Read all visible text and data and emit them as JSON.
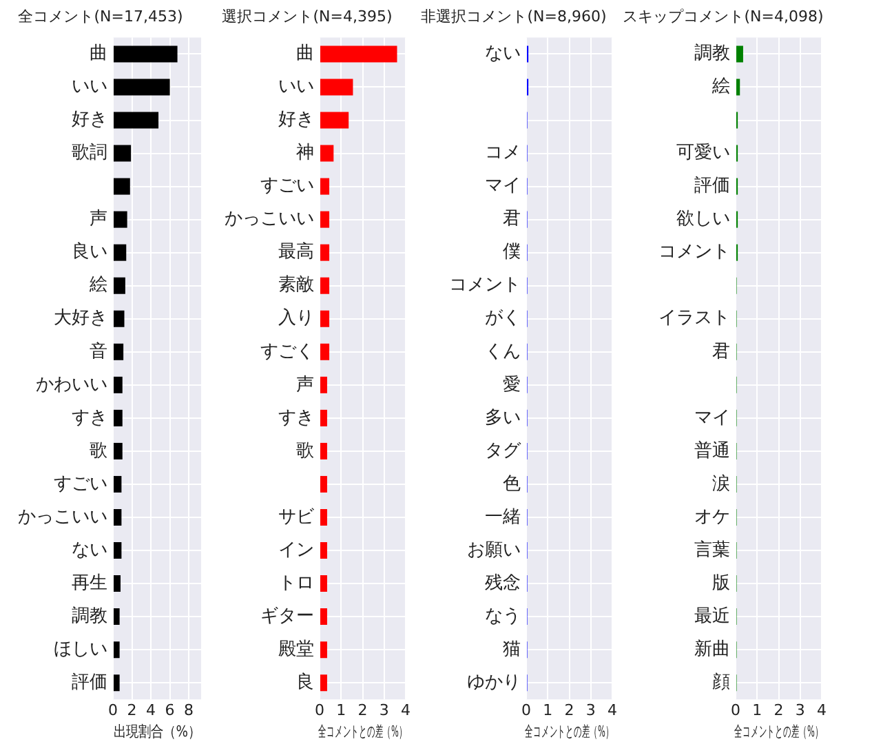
{
  "chart_data": [
    {
      "type": "bar",
      "orientation": "horizontal",
      "title": "全コメント(N=17,453)",
      "xlabel": "出現割合（%）",
      "grid": true,
      "color": "#000000",
      "xlim": [
        0,
        9.3
      ],
      "xticks": [
        0,
        2,
        4,
        6,
        8
      ],
      "categories": [
        "曲",
        "いい",
        "好き",
        "歌詞",
        null,
        "声",
        "良い",
        "絵",
        "大好き",
        "音",
        "かわいい",
        "すき",
        "歌",
        "すごい",
        "かっこいい",
        "ない",
        "再生",
        "調教",
        "ほしい",
        "評価"
      ],
      "values": [
        6.8,
        6.0,
        4.8,
        1.9,
        1.8,
        1.5,
        1.4,
        1.3,
        1.2,
        1.1,
        1.0,
        1.0,
        1.0,
        0.9,
        0.9,
        0.9,
        0.8,
        0.7,
        0.7,
        0.7
      ]
    },
    {
      "type": "bar",
      "orientation": "horizontal",
      "title": "選択コメント(N=4,395)",
      "xlabel": "全コメントとの差（%）",
      "grid": true,
      "color": "#ff0000",
      "xlim": [
        0,
        4
      ],
      "xticks": [
        0,
        1,
        2,
        3,
        4
      ],
      "categories": [
        "曲",
        "いい",
        "好き",
        "神",
        "すごい",
        "かっこいい",
        "最高",
        "素敵",
        "入り",
        "すごく",
        "声",
        "すき",
        "歌",
        null,
        "サビ",
        "イン",
        "トロ",
        "ギター",
        "殿堂",
        "良"
      ],
      "values": [
        3.6,
        1.55,
        1.35,
        0.65,
        0.45,
        0.45,
        0.45,
        0.45,
        0.45,
        0.45,
        0.35,
        0.35,
        0.35,
        0.35,
        0.35,
        0.35,
        0.35,
        0.35,
        0.35,
        0.35
      ]
    },
    {
      "type": "bar",
      "orientation": "horizontal",
      "title": "非選択コメント(N=8,960)",
      "xlabel": "全コメントとの差（%）",
      "grid": true,
      "color": "#0000ff",
      "xlim": [
        0,
        4
      ],
      "xticks": [
        0,
        1,
        2,
        3,
        4
      ],
      "categories": [
        "ない",
        null,
        null,
        "コメ",
        "マイ",
        "君",
        "僕",
        "コメント",
        "がく",
        "くん",
        "愛",
        "多い",
        "タグ",
        "色",
        "一緒",
        "お願い",
        "残念",
        "なう",
        "猫",
        "ゆかり"
      ],
      "values": [
        0.1,
        0.1,
        0.05,
        0.05,
        0.05,
        0.05,
        0.05,
        0.05,
        0.05,
        0.05,
        0.05,
        0.05,
        0.05,
        0.05,
        0.05,
        0.05,
        0.05,
        0.05,
        0.05,
        0.05
      ]
    },
    {
      "type": "bar",
      "orientation": "horizontal",
      "title": "スキップコメント(N=4,098)",
      "xlabel": "全コメントとの差（%）",
      "grid": true,
      "color": "#008000",
      "xlim": [
        0,
        4
      ],
      "xticks": [
        0,
        1,
        2,
        3,
        4
      ],
      "categories": [
        "調教",
        "絵",
        null,
        "可愛い",
        "評価",
        "欲しい",
        "コメント",
        null,
        "イラスト",
        "君",
        null,
        "マイ",
        "普通",
        "涙",
        "オケ",
        "言葉",
        "版",
        "最近",
        "新曲",
        "顔"
      ],
      "values": [
        0.35,
        0.2,
        0.1,
        0.1,
        0.1,
        0.1,
        0.1,
        0.05,
        0.05,
        0.05,
        0.05,
        0.05,
        0.05,
        0.05,
        0.05,
        0.05,
        0.05,
        0.05,
        0.05,
        0.05
      ]
    }
  ]
}
